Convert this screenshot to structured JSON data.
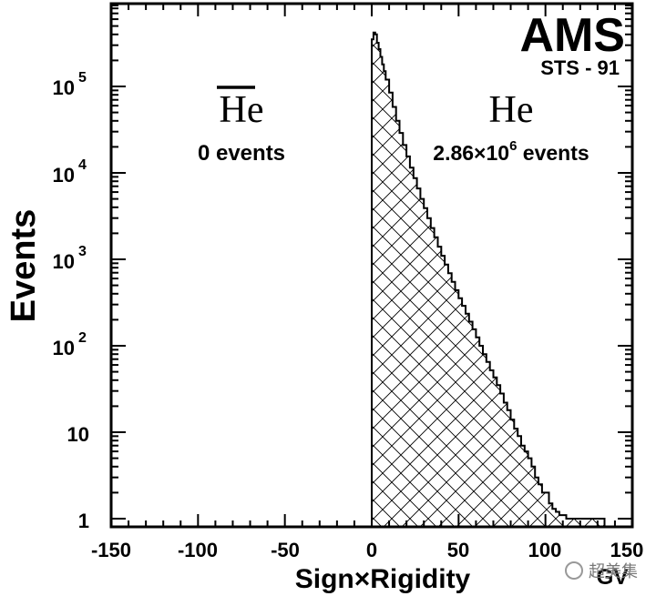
{
  "chart_data": {
    "type": "histogram",
    "xlabel": "Sign×Rigidity",
    "ylabel": "Events",
    "xlim": [
      -150,
      150
    ],
    "ylog": true,
    "ylim_decades": [
      0,
      5.7
    ],
    "x_ticks": [
      "-150",
      "-100",
      "-50",
      "0",
      "50",
      "100",
      "150"
    ],
    "y_ticks": [
      {
        "mantissa": "1",
        "exp": ""
      },
      {
        "mantissa": "10",
        "exp": ""
      },
      {
        "mantissa": "10",
        "exp": "2"
      },
      {
        "mantissa": "10",
        "exp": "3"
      },
      {
        "mantissa": "10",
        "exp": "4"
      },
      {
        "mantissa": "10",
        "exp": "5"
      }
    ],
    "x_unit_fragment": "GV",
    "logo": {
      "experiment": "AMS",
      "mission": "STS - 91"
    },
    "annotations": {
      "antihelium": {
        "symbol": "He",
        "events": "0 events"
      },
      "helium": {
        "symbol": "He",
        "events_prefix": "2.86×10",
        "events_exp": "6",
        "events_suffix": " events"
      }
    },
    "series": [
      {
        "name": "He",
        "hatch": "cross",
        "points": [
          [
            0,
            350000
          ],
          [
            1,
            420000
          ],
          [
            2,
            400000
          ],
          [
            3,
            320000
          ],
          [
            4,
            270000
          ],
          [
            5,
            220000
          ],
          [
            6,
            180000
          ],
          [
            7,
            150000
          ],
          [
            8,
            120000
          ],
          [
            10,
            85000
          ],
          [
            12,
            58000
          ],
          [
            14,
            40000
          ],
          [
            16,
            29000
          ],
          [
            18,
            21000
          ],
          [
            20,
            15500
          ],
          [
            22,
            11500
          ],
          [
            24,
            8700
          ],
          [
            26,
            6600
          ],
          [
            28,
            5000
          ],
          [
            30,
            3900
          ],
          [
            32,
            3000
          ],
          [
            34,
            2300
          ],
          [
            36,
            1800
          ],
          [
            38,
            1400
          ],
          [
            40,
            1100
          ],
          [
            42,
            870
          ],
          [
            44,
            690
          ],
          [
            46,
            550
          ],
          [
            48,
            440
          ],
          [
            50,
            355
          ],
          [
            52,
            290
          ],
          [
            54,
            235
          ],
          [
            56,
            190
          ],
          [
            58,
            155
          ],
          [
            60,
            125
          ],
          [
            62,
            100
          ],
          [
            64,
            80
          ],
          [
            66,
            65
          ],
          [
            68,
            52
          ],
          [
            70,
            43
          ],
          [
            72,
            35
          ],
          [
            74,
            28
          ],
          [
            76,
            22
          ],
          [
            78,
            18
          ],
          [
            80,
            14
          ],
          [
            82,
            11
          ],
          [
            84,
            9
          ],
          [
            86,
            7
          ],
          [
            88,
            6
          ],
          [
            90,
            5
          ],
          [
            92,
            4
          ],
          [
            94,
            3
          ],
          [
            96,
            2.5
          ],
          [
            98,
            2
          ],
          [
            100,
            2
          ],
          [
            102,
            1.5
          ],
          [
            104,
            1.3
          ],
          [
            106,
            1.2
          ],
          [
            108,
            1.1
          ],
          [
            110,
            1.1
          ],
          [
            112,
            1
          ],
          [
            116,
            1
          ],
          [
            120,
            1
          ],
          [
            124,
            1
          ],
          [
            128,
            1
          ],
          [
            132,
            1
          ],
          [
            134,
            0
          ]
        ]
      }
    ],
    "corner_text": "超美集"
  }
}
